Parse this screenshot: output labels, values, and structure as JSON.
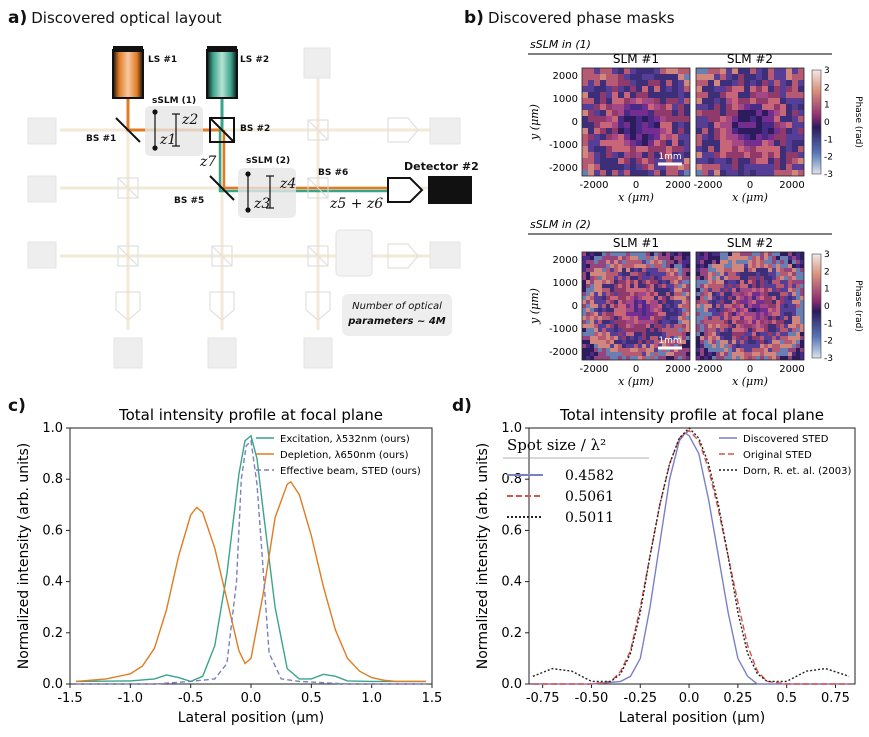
{
  "panel_a": {
    "letter": "a)",
    "title": "Discovered optical layout",
    "labels": {
      "ls1": "LS #1",
      "ls2": "LS #2",
      "sslm1": "sSLM (1)",
      "sslm2": "sSLM (2)",
      "bs1": "BS #1",
      "bs2": "BS #2",
      "bs5": "BS #5",
      "bs6": "BS #6",
      "detector": "Detector #2",
      "z1": "z1",
      "z2": "z2",
      "z3": "z3",
      "z4": "z4",
      "z7": "z7",
      "z56": "z5 + z6"
    },
    "params_note_line1": "Number of optical",
    "params_note_line2": "parameters ~ 4M"
  },
  "panel_b": {
    "letter": "b)",
    "title": "Discovered phase masks",
    "row1_title": "sSLM in (1)",
    "row2_title": "sSLM in (2)",
    "slm1": "SLM #1",
    "slm2": "SLM #2",
    "scalebar": "1mm",
    "colorbar_label": "Phase (rad)",
    "colorbar_ticks": [
      "3",
      "2",
      "1",
      "0",
      "-1",
      "-2",
      "-3"
    ],
    "x_ticks": [
      "-2000",
      "0",
      "2000"
    ],
    "y_ticks": [
      "2000",
      "1000",
      "0",
      "-1000",
      "-2000"
    ],
    "x_label": "x (μm)",
    "y_label": "y (μm)"
  },
  "panel_c": {
    "letter": "c)",
    "colors": {
      "excitation": "#3aa48a",
      "depletion": "#e07b22",
      "effective": "#7b7fc4"
    },
    "chart_data": {
      "type": "line",
      "title": "Total intensity profile at focal plane",
      "xlabel": "Lateral position (μm)",
      "ylabel": "Normalized intensity (arb. units)",
      "xlim": [
        -1.5,
        1.5
      ],
      "ylim": [
        0,
        1.0
      ],
      "xticks": [
        "-1.5",
        "-1.0",
        "-0.5",
        "0.0",
        "0.5",
        "1.0",
        "1.5"
      ],
      "yticks": [
        "0.0",
        "0.2",
        "0.4",
        "0.6",
        "0.8",
        "1.0"
      ],
      "legend": [
        "Excitation, λ532nm (ours)",
        "Depletion, λ650nm (ours)",
        "Effective beam, STED (ours)"
      ],
      "series": [
        {
          "name": "Excitation",
          "x": [
            -1.45,
            -1.0,
            -0.8,
            -0.7,
            -0.6,
            -0.5,
            -0.4,
            -0.3,
            -0.2,
            -0.1,
            -0.05,
            0.0,
            0.05,
            0.1,
            0.2,
            0.3,
            0.4,
            0.5,
            0.6,
            0.7,
            0.8,
            1.0,
            1.2,
            1.45
          ],
          "values": [
            0.01,
            0.012,
            0.02,
            0.035,
            0.025,
            0.01,
            0.03,
            0.15,
            0.43,
            0.82,
            0.95,
            0.97,
            0.88,
            0.68,
            0.3,
            0.06,
            0.02,
            0.02,
            0.038,
            0.03,
            0.012,
            0.01,
            0.01,
            0.01
          ]
        },
        {
          "name": "Depletion",
          "x": [
            -1.45,
            -1.2,
            -1.0,
            -0.9,
            -0.8,
            -0.7,
            -0.6,
            -0.5,
            -0.45,
            -0.4,
            -0.3,
            -0.2,
            -0.1,
            -0.05,
            0.0,
            0.1,
            0.2,
            0.3,
            0.33,
            0.4,
            0.5,
            0.6,
            0.7,
            0.8,
            0.9,
            1.0,
            1.1,
            1.2,
            1.45
          ],
          "values": [
            0.01,
            0.02,
            0.04,
            0.07,
            0.14,
            0.29,
            0.5,
            0.66,
            0.69,
            0.67,
            0.53,
            0.33,
            0.13,
            0.08,
            0.1,
            0.35,
            0.65,
            0.78,
            0.79,
            0.74,
            0.58,
            0.38,
            0.21,
            0.1,
            0.05,
            0.025,
            0.015,
            0.01,
            0.01
          ]
        },
        {
          "name": "Effective beam",
          "x": [
            -1.45,
            -0.8,
            -0.5,
            -0.3,
            -0.2,
            -0.12,
            -0.08,
            -0.04,
            0.0,
            0.05,
            0.1,
            0.15,
            0.25,
            0.4,
            0.8,
            1.45
          ],
          "values": [
            0.0,
            0.0,
            0.01,
            0.02,
            0.08,
            0.4,
            0.8,
            0.93,
            0.95,
            0.78,
            0.45,
            0.12,
            0.02,
            0.01,
            0.0,
            0.0
          ]
        }
      ]
    }
  },
  "panel_d": {
    "letter": "d)",
    "colors": {
      "discovered": "#7b7fc4",
      "original": "#d9534f",
      "dorn": "#222222"
    },
    "spot_header": "Spot size / λ²",
    "spot_values": [
      "0.4582",
      "0.5061",
      "0.5011"
    ],
    "chart_data": {
      "type": "line",
      "title": "Total intensity profile at focal plane",
      "xlabel": "Lateral position (μm)",
      "ylabel": "Normalized intensity (arb. units)",
      "xlim": [
        -0.82,
        0.85
      ],
      "ylim": [
        0,
        1.0
      ],
      "xticks": [
        "-0.75",
        "-0.50",
        "-0.25",
        "0.0",
        "0.25",
        "0.5",
        "0.75"
      ],
      "yticks": [
        "0.0",
        "0.2",
        "0.4",
        "0.6",
        "0.8",
        "1.0"
      ],
      "legend": [
        "Discovered STED",
        "Original STED",
        "Dorn, R. et. al. (2003)"
      ],
      "series": [
        {
          "name": "Discovered STED",
          "x": [
            -0.8,
            -0.5,
            -0.35,
            -0.3,
            -0.25,
            -0.2,
            -0.15,
            -0.1,
            -0.05,
            -0.02,
            0.0,
            0.05,
            0.1,
            0.15,
            0.2,
            0.25,
            0.3,
            0.35,
            0.5,
            0.82
          ],
          "values": [
            0.0,
            0.0,
            0.01,
            0.03,
            0.1,
            0.3,
            0.55,
            0.8,
            0.95,
            0.98,
            0.97,
            0.9,
            0.72,
            0.5,
            0.28,
            0.1,
            0.03,
            0.0,
            0.0,
            0.0
          ]
        },
        {
          "name": "Original STED",
          "x": [
            -0.8,
            -0.5,
            -0.4,
            -0.35,
            -0.3,
            -0.25,
            -0.2,
            -0.15,
            -0.1,
            -0.05,
            0.0,
            0.05,
            0.1,
            0.15,
            0.2,
            0.25,
            0.3,
            0.35,
            0.4,
            0.5,
            0.82
          ],
          "values": [
            0.0,
            0.0,
            0.01,
            0.05,
            0.13,
            0.3,
            0.5,
            0.7,
            0.86,
            0.96,
            0.99,
            0.95,
            0.84,
            0.68,
            0.5,
            0.32,
            0.15,
            0.05,
            0.01,
            0.0,
            0.0
          ]
        },
        {
          "name": "Dorn, R. et. al. (2003)",
          "x": [
            -0.8,
            -0.7,
            -0.6,
            -0.5,
            -0.4,
            -0.35,
            -0.3,
            -0.25,
            -0.2,
            -0.15,
            -0.1,
            -0.05,
            0.0,
            0.05,
            0.1,
            0.15,
            0.2,
            0.25,
            0.3,
            0.35,
            0.4,
            0.5,
            0.6,
            0.7,
            0.82
          ],
          "values": [
            0.03,
            0.06,
            0.05,
            0.01,
            0.01,
            0.04,
            0.12,
            0.28,
            0.5,
            0.7,
            0.86,
            0.96,
            1.0,
            0.96,
            0.86,
            0.7,
            0.5,
            0.28,
            0.12,
            0.04,
            0.01,
            0.01,
            0.05,
            0.06,
            0.03
          ]
        }
      ]
    }
  }
}
